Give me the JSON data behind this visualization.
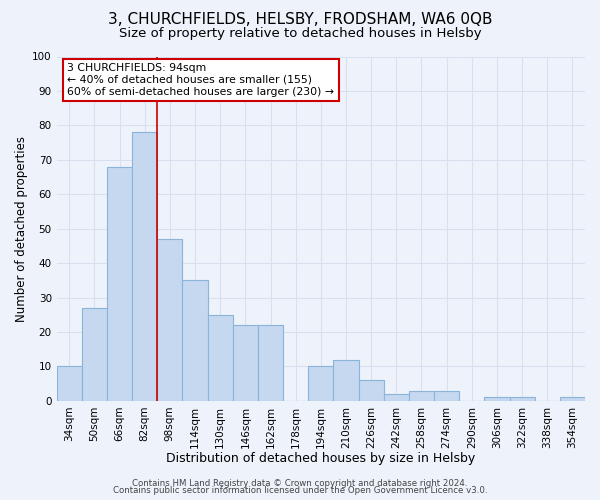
{
  "title": "3, CHURCHFIELDS, HELSBY, FRODSHAM, WA6 0QB",
  "subtitle": "Size of property relative to detached houses in Helsby",
  "xlabel": "Distribution of detached houses by size in Helsby",
  "ylabel": "Number of detached properties",
  "bar_labels": [
    "34sqm",
    "50sqm",
    "66sqm",
    "82sqm",
    "98sqm",
    "114sqm",
    "130sqm",
    "146sqm",
    "162sqm",
    "178sqm",
    "194sqm",
    "210sqm",
    "226sqm",
    "242sqm",
    "258sqm",
    "274sqm",
    "290sqm",
    "306sqm",
    "322sqm",
    "338sqm",
    "354sqm"
  ],
  "bar_values": [
    10,
    27,
    68,
    78,
    47,
    35,
    25,
    22,
    22,
    0,
    10,
    12,
    6,
    2,
    3,
    3,
    0,
    1,
    1,
    0,
    1
  ],
  "bar_color": "#c5d8f0",
  "bar_edge_color": "#8ab4d8",
  "background_color": "#eef2fb",
  "grid_color": "#d8e0f0",
  "ylim": [
    0,
    100
  ],
  "yticks": [
    0,
    10,
    20,
    30,
    40,
    50,
    60,
    70,
    80,
    90,
    100
  ],
  "vline_x_idx": 3.5,
  "vline_color": "#cc0000",
  "annotation_title": "3 CHURCHFIELDS: 94sqm",
  "annotation_line1": "← 40% of detached houses are smaller (155)",
  "annotation_line2": "60% of semi-detached houses are larger (230) →",
  "annotation_box_color": "#ffffff",
  "annotation_box_edge": "#cc0000",
  "footer_line1": "Contains HM Land Registry data © Crown copyright and database right 2024.",
  "footer_line2": "Contains public sector information licensed under the Open Government Licence v3.0.",
  "title_fontsize": 11,
  "subtitle_fontsize": 9.5,
  "xlabel_fontsize": 9,
  "ylabel_fontsize": 8.5,
  "tick_fontsize": 7.5,
  "annotation_fontsize": 7.8,
  "footer_fontsize": 6.2
}
